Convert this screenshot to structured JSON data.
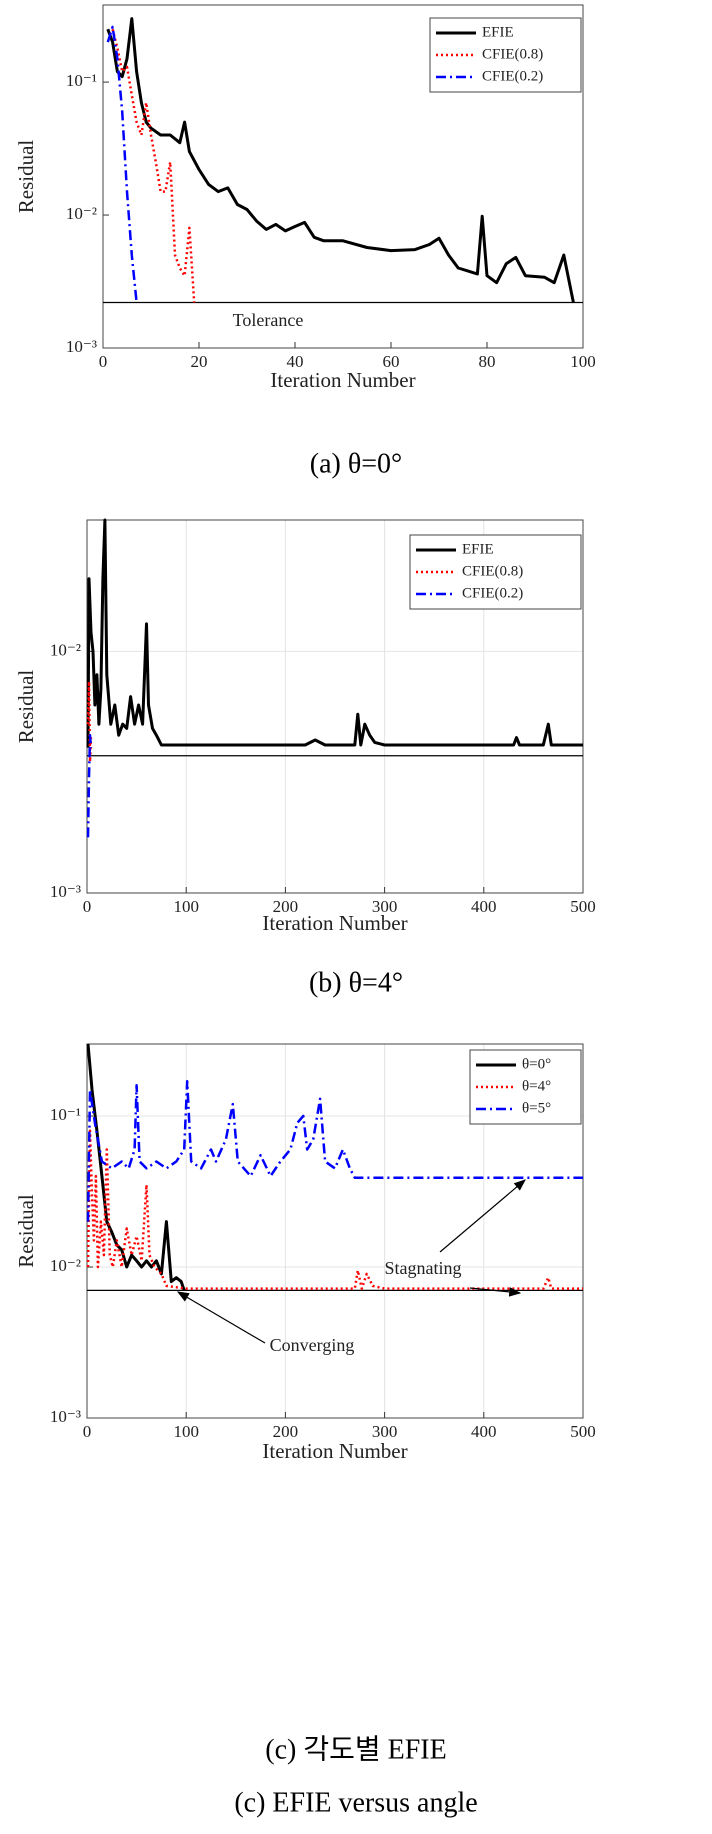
{
  "chart_data": [
    {
      "type": "line",
      "xlabel": "Iteration Number",
      "ylabel": "Residual",
      "captions": [
        "(a)  θ=0°"
      ],
      "yscale": "log",
      "xlim": [
        0,
        100
      ],
      "ylim": [
        0.001,
        0.38
      ],
      "xticks": [
        0,
        20,
        40,
        60,
        80,
        100
      ],
      "yticks": [
        {
          "value": 0.001,
          "label": "10⁻³"
        },
        {
          "value": 0.01,
          "label": "10⁻²"
        },
        {
          "value": 0.1,
          "label": "10⁻¹"
        }
      ],
      "grid": false,
      "legend": "upper right",
      "tolerance": 0.0022,
      "annotations": [
        "Tolerance"
      ],
      "series": [
        {
          "name": "EFIE",
          "color": "#000000",
          "linestyle": "solid",
          "x": [
            1,
            2,
            3,
            4,
            5,
            6,
            7,
            8,
            9,
            10,
            12,
            14,
            16,
            17,
            18,
            20,
            22,
            24,
            26,
            28,
            30,
            32,
            34,
            36,
            38,
            40,
            42,
            44,
            46,
            50,
            55,
            60,
            65,
            68,
            70,
            72,
            74,
            76,
            78,
            79,
            80,
            82,
            84,
            86,
            88,
            92,
            94,
            96,
            98
          ],
          "values": [
            0.25,
            0.2,
            0.12,
            0.11,
            0.15,
            0.3,
            0.12,
            0.07,
            0.05,
            0.045,
            0.04,
            0.04,
            0.035,
            0.05,
            0.03,
            0.022,
            0.017,
            0.015,
            0.016,
            0.012,
            0.011,
            0.009,
            0.0078,
            0.0085,
            0.0076,
            0.0082,
            0.0088,
            0.0068,
            0.0064,
            0.0064,
            0.0057,
            0.0054,
            0.0055,
            0.006,
            0.0067,
            0.005,
            0.004,
            0.0038,
            0.0036,
            0.0098,
            0.0035,
            0.0031,
            0.0043,
            0.0048,
            0.0035,
            0.0034,
            0.0031,
            0.005,
            0.0022
          ]
        },
        {
          "name": "CFIE(0.8)",
          "color": "#ff0000",
          "linestyle": "dotted",
          "x": [
            2,
            3,
            4,
            5,
            6,
            7,
            8,
            9,
            10,
            11,
            12,
            13,
            14,
            15,
            16,
            17,
            18,
            19
          ],
          "values": [
            0.25,
            0.18,
            0.12,
            0.13,
            0.08,
            0.05,
            0.04,
            0.07,
            0.04,
            0.025,
            0.015,
            0.015,
            0.025,
            0.005,
            0.004,
            0.0035,
            0.008,
            0.0022
          ]
        },
        {
          "name": "CFIE(0.2)",
          "color": "#0000ff",
          "linestyle": "dash-dot",
          "x": [
            1,
            2,
            3,
            4,
            5,
            6,
            7
          ],
          "values": [
            0.2,
            0.26,
            0.15,
            0.06,
            0.015,
            0.005,
            0.0022
          ]
        }
      ]
    },
    {
      "type": "line",
      "xlabel": "Iteration Number",
      "ylabel": "Residual",
      "captions": [
        "(b)  θ=4°"
      ],
      "yscale": "log",
      "xlim": [
        0,
        500
      ],
      "ylim": [
        0.001,
        0.035
      ],
      "xticks": [
        0,
        100,
        200,
        300,
        400,
        500
      ],
      "yticks": [
        {
          "value": 0.001,
          "label": "10⁻³"
        },
        {
          "value": 0.01,
          "label": "10⁻²"
        }
      ],
      "grid": true,
      "legend": "upper right",
      "tolerance": 0.0037,
      "annotations": [],
      "series": [
        {
          "name": "EFIE",
          "color": "#000000",
          "linestyle": "solid",
          "x": [
            1,
            2,
            4,
            6,
            8,
            10,
            12,
            14,
            16,
            18,
            20,
            24,
            28,
            32,
            36,
            40,
            44,
            48,
            52,
            56,
            60,
            62,
            66,
            70,
            75,
            100,
            220,
            230,
            240,
            270,
            273,
            276,
            280,
            285,
            290,
            300,
            430,
            433,
            436,
            460,
            465,
            468,
            500
          ],
          "values": [
            0.004,
            0.02,
            0.012,
            0.01,
            0.006,
            0.008,
            0.005,
            0.007,
            0.02,
            0.035,
            0.008,
            0.005,
            0.006,
            0.0045,
            0.005,
            0.0048,
            0.0065,
            0.005,
            0.006,
            0.005,
            0.013,
            0.006,
            0.0048,
            0.0045,
            0.0041,
            0.0041,
            0.0041,
            0.0043,
            0.0041,
            0.0041,
            0.0055,
            0.0041,
            0.005,
            0.0045,
            0.0042,
            0.0041,
            0.0041,
            0.0044,
            0.0041,
            0.0041,
            0.005,
            0.0041,
            0.0041
          ]
        },
        {
          "name": "CFIE(0.8)",
          "color": "#ff0000",
          "linestyle": "dotted",
          "x": [
            1,
            2,
            3,
            4
          ],
          "values": [
            0.005,
            0.0075,
            0.0035,
            0.0045
          ]
        },
        {
          "name": "CFIE(0.2)",
          "color": "#0000ff",
          "linestyle": "dash-dot",
          "x": [
            1,
            2,
            3,
            4
          ],
          "values": [
            0.0017,
            0.003,
            0.0045,
            0.004
          ]
        }
      ]
    },
    {
      "type": "line",
      "xlabel": "Iteration Number",
      "ylabel": "Residual",
      "captions": [
        "(c)  각도별  EFIE",
        "(c)  EFIE  versus  angle"
      ],
      "yscale": "log",
      "xlim": [
        0,
        500
      ],
      "ylim": [
        0.001,
        0.3
      ],
      "xticks": [
        0,
        100,
        200,
        300,
        400,
        500
      ],
      "yticks": [
        {
          "value": 0.001,
          "label": "10⁻³"
        },
        {
          "value": 0.01,
          "label": "10⁻²"
        },
        {
          "value": 0.1,
          "label": "10⁻¹"
        }
      ],
      "grid": true,
      "legend": "upper right",
      "tolerance": 0.007,
      "annotations": [
        "Stagnating",
        "Converging"
      ],
      "series": [
        {
          "name": "θ=0°",
          "color": "#000000",
          "linestyle": "solid",
          "x": [
            1,
            5,
            10,
            15,
            20,
            25,
            30,
            35,
            40,
            45,
            50,
            55,
            60,
            65,
            70,
            75,
            80,
            85,
            90,
            95,
            98
          ],
          "values": [
            0.3,
            0.15,
            0.08,
            0.04,
            0.02,
            0.017,
            0.014,
            0.013,
            0.01,
            0.012,
            0.011,
            0.01,
            0.011,
            0.01,
            0.011,
            0.009,
            0.02,
            0.008,
            0.0085,
            0.008,
            0.007
          ]
        },
        {
          "name": "θ=4°",
          "color": "#ff0000",
          "linestyle": "dotted",
          "x": [
            1,
            3,
            5,
            7,
            9,
            11,
            14,
            17,
            20,
            23,
            26,
            30,
            35,
            40,
            45,
            50,
            55,
            60,
            63,
            68,
            75,
            80,
            100,
            270,
            273,
            277,
            282,
            288,
            300,
            460,
            465,
            468,
            500
          ],
          "values": [
            0.01,
            0.08,
            0.03,
            0.015,
            0.04,
            0.01,
            0.02,
            0.012,
            0.06,
            0.012,
            0.01,
            0.015,
            0.01,
            0.018,
            0.012,
            0.016,
            0.011,
            0.035,
            0.012,
            0.01,
            0.009,
            0.0075,
            0.0072,
            0.0072,
            0.0095,
            0.0072,
            0.009,
            0.0075,
            0.0072,
            0.0072,
            0.0085,
            0.0072,
            0.0072
          ]
        },
        {
          "name": "θ=5°",
          "color": "#0000ff",
          "linestyle": "dash-dot",
          "x": [
            1,
            3,
            8,
            15,
            25,
            35,
            42,
            48,
            50,
            53,
            60,
            70,
            80,
            90,
            98,
            101,
            105,
            115,
            125,
            130,
            140,
            147,
            152,
            165,
            175,
            185,
            195,
            205,
            212,
            218,
            222,
            228,
            235,
            240,
            250,
            258,
            265,
            270,
            500
          ],
          "values": [
            0.02,
            0.15,
            0.09,
            0.05,
            0.045,
            0.05,
            0.045,
            0.06,
            0.16,
            0.05,
            0.045,
            0.05,
            0.045,
            0.05,
            0.06,
            0.17,
            0.05,
            0.045,
            0.06,
            0.05,
            0.07,
            0.12,
            0.05,
            0.04,
            0.055,
            0.04,
            0.05,
            0.06,
            0.09,
            0.1,
            0.06,
            0.07,
            0.13,
            0.05,
            0.045,
            0.06,
            0.045,
            0.039,
            0.039
          ]
        }
      ]
    }
  ]
}
